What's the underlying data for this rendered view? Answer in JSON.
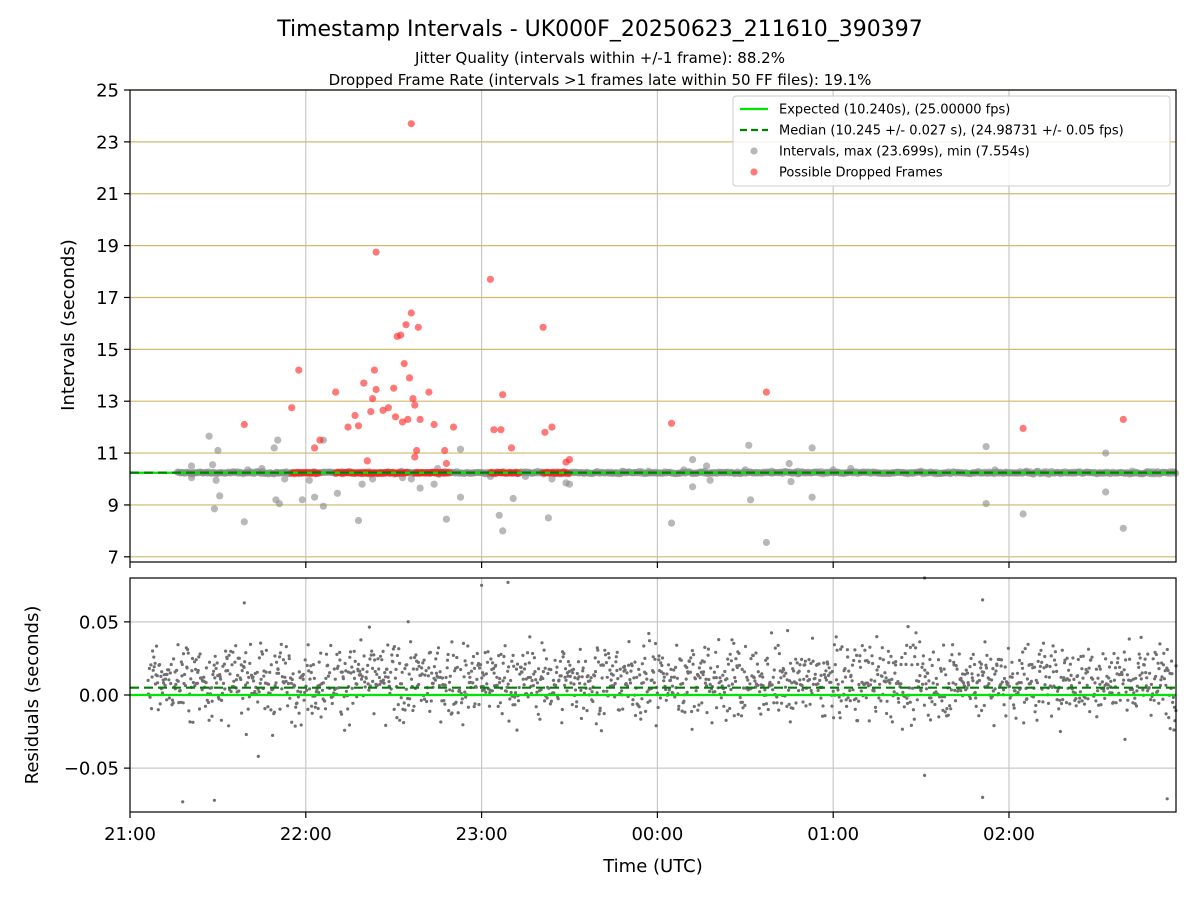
{
  "colors": {
    "expected": "#00e600",
    "median": "#008000",
    "interval": "#888888",
    "dropped": "#ff2020",
    "hgrid": "#d2b96e",
    "vgrid": "#c8c8c8",
    "residual": "#707070"
  },
  "chart_data": [
    {
      "type": "scatter",
      "title": "Timestamp Intervals - UK000F_20250623_211610_390397",
      "subtitle_lines": [
        "Jitter Quality (intervals within +/-1 frame): 88.2%",
        "Dropped Frame Rate (intervals >1 frames late within 50 FF files): 19.1%"
      ],
      "ylabel": "Intervals (seconds)",
      "xlabel": "",
      "ylim": [
        6.8,
        25
      ],
      "y_ticks": [
        7,
        9,
        11,
        13,
        15,
        17,
        19,
        21,
        23,
        25
      ],
      "x_range_hours": [
        21.0,
        26.95
      ],
      "grid": "both",
      "legend_position": "top-right",
      "expected_interval": 10.24,
      "median_interval": 10.245,
      "baseline": {
        "name": "Intervals, max (23.699s), min (7.554s)",
        "x_start": 21.27,
        "x_end": 26.95,
        "y": 10.24
      },
      "series": [
        {
          "name": "Intervals, max (23.699s), min (7.554s)",
          "points": [
            [
              21.35,
              10.5
            ],
            [
              21.35,
              10.05
            ],
            [
              21.45,
              11.65
            ],
            [
              21.47,
              10.55
            ],
            [
              21.48,
              8.85
            ],
            [
              21.49,
              9.95
            ],
            [
              21.5,
              11.1
            ],
            [
              21.51,
              9.35
            ],
            [
              21.65,
              8.35
            ],
            [
              21.67,
              10.35
            ],
            [
              21.75,
              10.4
            ],
            [
              21.82,
              11.2
            ],
            [
              21.83,
              9.2
            ],
            [
              21.84,
              11.5
            ],
            [
              21.85,
              9.05
            ],
            [
              21.88,
              10.0
            ],
            [
              21.98,
              9.2
            ],
            [
              22.02,
              9.95
            ],
            [
              22.05,
              9.3
            ],
            [
              22.1,
              8.95
            ],
            [
              22.1,
              11.5
            ],
            [
              22.18,
              9.45
            ],
            [
              22.3,
              8.4
            ],
            [
              22.32,
              9.8
            ],
            [
              22.38,
              10.0
            ],
            [
              22.55,
              10.05
            ],
            [
              22.6,
              10.0
            ],
            [
              22.65,
              9.65
            ],
            [
              22.73,
              9.8
            ],
            [
              22.75,
              10.4
            ],
            [
              22.8,
              8.45
            ],
            [
              22.88,
              9.3
            ],
            [
              22.88,
              11.15
            ],
            [
              23.05,
              10.1
            ],
            [
              23.1,
              8.6
            ],
            [
              23.12,
              8.0
            ],
            [
              23.18,
              9.25
            ],
            [
              23.25,
              10.1
            ],
            [
              23.38,
              8.5
            ],
            [
              23.4,
              10.0
            ],
            [
              23.48,
              9.85
            ],
            [
              23.5,
              9.8
            ],
            [
              23.8,
              10.3
            ],
            [
              23.95,
              10.3
            ],
            [
              24.08,
              8.3
            ],
            [
              24.15,
              10.35
            ],
            [
              24.2,
              10.75
            ],
            [
              24.2,
              9.7
            ],
            [
              24.28,
              10.5
            ],
            [
              24.3,
              9.95
            ],
            [
              24.5,
              10.35
            ],
            [
              24.52,
              11.3
            ],
            [
              24.53,
              9.2
            ],
            [
              24.62,
              7.55
            ],
            [
              24.65,
              10.3
            ],
            [
              24.75,
              10.6
            ],
            [
              24.76,
              9.9
            ],
            [
              24.8,
              10.3
            ],
            [
              24.88,
              11.2
            ],
            [
              24.88,
              9.3
            ],
            [
              25.0,
              10.35
            ],
            [
              25.1,
              10.4
            ],
            [
              25.5,
              10.3
            ],
            [
              25.87,
              11.25
            ],
            [
              25.87,
              9.05
            ],
            [
              25.92,
              10.35
            ],
            [
              26.08,
              8.65
            ],
            [
              26.1,
              10.3
            ],
            [
              26.55,
              11.0
            ],
            [
              26.55,
              9.5
            ],
            [
              26.65,
              8.1
            ],
            [
              26.7,
              10.3
            ]
          ]
        },
        {
          "name": "Possible Dropped Frames",
          "points": [
            [
              21.65,
              12.1
            ],
            [
              21.92,
              12.75
            ],
            [
              21.96,
              14.2
            ],
            [
              22.05,
              11.2
            ],
            [
              22.08,
              11.5
            ],
            [
              22.17,
              13.35
            ],
            [
              22.24,
              12.0
            ],
            [
              22.28,
              12.45
            ],
            [
              22.3,
              12.05
            ],
            [
              22.33,
              13.7
            ],
            [
              22.35,
              10.7
            ],
            [
              22.37,
              12.6
            ],
            [
              22.38,
              13.1
            ],
            [
              22.39,
              14.2
            ],
            [
              22.4,
              13.45
            ],
            [
              22.44,
              12.65
            ],
            [
              22.47,
              12.75
            ],
            [
              22.5,
              13.5
            ],
            [
              22.51,
              12.4
            ],
            [
              22.52,
              15.5
            ],
            [
              22.54,
              15.55
            ],
            [
              22.55,
              12.2
            ],
            [
              22.56,
              14.45
            ],
            [
              22.57,
              15.95
            ],
            [
              22.58,
              12.3
            ],
            [
              22.59,
              13.9
            ],
            [
              22.6,
              16.4
            ],
            [
              22.61,
              13.1
            ],
            [
              22.62,
              10.85
            ],
            [
              22.62,
              12.85
            ],
            [
              22.63,
              11.1
            ],
            [
              22.64,
              15.85
            ],
            [
              22.65,
              12.3
            ],
            [
              22.7,
              13.35
            ],
            [
              22.73,
              12.1
            ],
            [
              22.79,
              11.1
            ],
            [
              22.8,
              10.6
            ],
            [
              22.84,
              12.0
            ],
            [
              22.4,
              18.75
            ],
            [
              22.6,
              23.7
            ],
            [
              23.05,
              17.7
            ],
            [
              23.07,
              11.9
            ],
            [
              23.11,
              11.9
            ],
            [
              23.12,
              13.25
            ],
            [
              23.17,
              11.2
            ],
            [
              23.35,
              15.85
            ],
            [
              23.36,
              11.8
            ],
            [
              23.4,
              12.0
            ],
            [
              23.48,
              10.65
            ],
            [
              23.5,
              10.75
            ],
            [
              24.08,
              12.15
            ],
            [
              24.62,
              13.35
            ],
            [
              26.08,
              11.95
            ],
            [
              26.65,
              12.3
            ]
          ],
          "clusters": [
            {
              "x_start": 21.92,
              "x_end": 22.08,
              "y": 10.24
            },
            {
              "x_start": 22.17,
              "x_end": 22.58,
              "y": 10.24
            },
            {
              "x_start": 22.62,
              "x_end": 22.82,
              "y": 10.24
            },
            {
              "x_start": 23.05,
              "x_end": 23.22,
              "y": 10.24
            },
            {
              "x_start": 23.35,
              "x_end": 23.5,
              "y": 10.24
            }
          ]
        }
      ],
      "legend": [
        "Expected (10.240s), (25.00000 fps)",
        "Median (10.245 +/- 0.027 s), (24.98731 +/- 0.05 fps)",
        "Intervals, max (23.699s), min (7.554s)",
        "Possible Dropped Frames"
      ]
    },
    {
      "type": "scatter",
      "title": "",
      "xlabel": "Time (UTC)",
      "ylabel": "Residuals (seconds)",
      "ylim": [
        -0.08,
        0.08
      ],
      "y_ticks": [
        0.05,
        0.0,
        -0.05
      ],
      "y_tick_labels": [
        "0.05",
        "0.00",
        "−0.05"
      ],
      "x_range_hours": [
        21.0,
        26.95
      ],
      "x_ticks": [
        21,
        22,
        23,
        24,
        25,
        26
      ],
      "x_tick_labels": [
        "21:00",
        "22:00",
        "23:00",
        "00:00",
        "01:00",
        "02:00"
      ],
      "grid": "both",
      "expected_residual": 0.0,
      "median_residual": 0.005,
      "residual_x_start": 21.1,
      "residual_x_end": 26.95,
      "residual_point_count": 1750,
      "residual_spread_sd": 0.018,
      "residual_center": 0.01,
      "residual_outliers": [
        [
          21.3,
          -0.073
        ],
        [
          21.65,
          0.063
        ],
        [
          21.73,
          -0.042
        ],
        [
          21.48,
          -0.072
        ],
        [
          23.0,
          0.075
        ],
        [
          23.15,
          0.077
        ],
        [
          25.52,
          0.08
        ],
        [
          25.52,
          -0.055
        ],
        [
          25.85,
          0.065
        ],
        [
          25.85,
          -0.07
        ],
        [
          26.9,
          -0.071
        ],
        [
          26.95,
          0.02
        ]
      ]
    }
  ]
}
